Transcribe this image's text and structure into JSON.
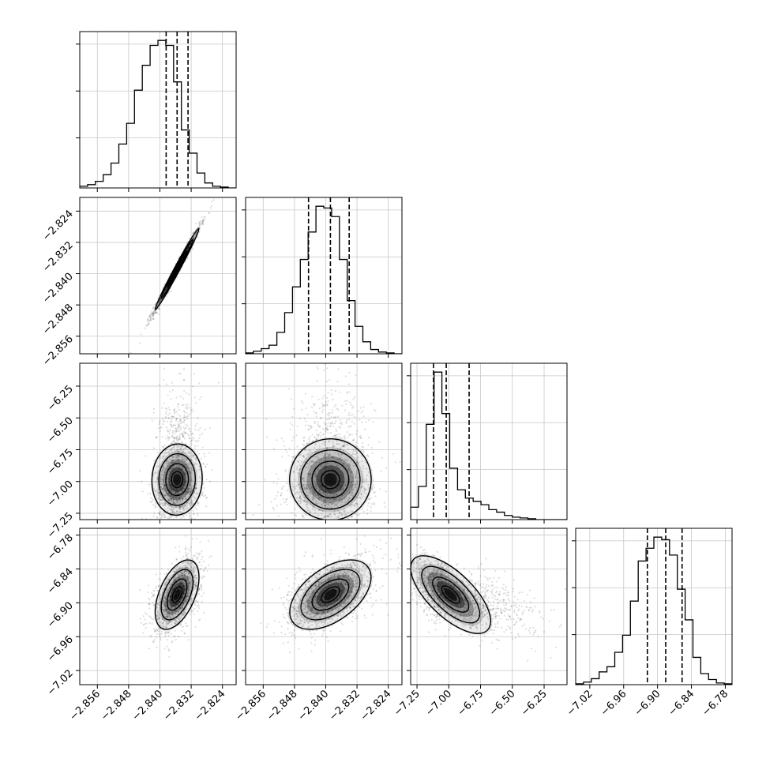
{
  "chart_data": {
    "type": "corner",
    "grid": true,
    "variables": [
      {
        "ticks": [
          "−2.856",
          "−2.848",
          "−2.840",
          "−2.832",
          "−2.824"
        ],
        "tick_values": [
          -2.856,
          -2.848,
          -2.84,
          -2.832,
          -2.824
        ],
        "range": [
          -2.8605,
          -2.8205
        ],
        "quantiles": [
          -2.8384,
          -2.8356,
          -2.8328
        ]
      },
      {
        "ticks": [
          "−2.856",
          "−2.848",
          "−2.840",
          "−2.832",
          "−2.824"
        ],
        "tick_values": [
          -2.856,
          -2.848,
          -2.84,
          -2.832,
          -2.824
        ],
        "range": [
          -2.8605,
          -2.8205
        ],
        "quantiles": [
          -2.8444,
          -2.8388,
          -2.834
        ]
      },
      {
        "ticks": [
          "−7.25",
          "−7.00",
          "−6.75",
          "−6.50",
          "−6.25"
        ],
        "tick_values": [
          -7.25,
          -7.0,
          -6.75,
          -6.5,
          -6.25
        ],
        "range": [
          -7.3,
          -6.07
        ],
        "quantiles": [
          -7.12,
          -7.02,
          -6.84
        ]
      },
      {
        "ticks": [
          "−7.02",
          "−6.96",
          "−6.90",
          "−6.84",
          "−6.78"
        ],
        "tick_values": [
          -7.02,
          -6.96,
          -6.9,
          -6.84,
          -6.78
        ],
        "range": [
          -7.045,
          -6.768
        ],
        "quantiles": [
          -6.918,
          -6.8855,
          -6.8565
        ]
      }
    ],
    "histograms": [
      {
        "variable": 0,
        "bin_edges": [
          -2.8605,
          -2.8585,
          -2.8565,
          -2.8545,
          -2.8525,
          -2.8505,
          -2.8485,
          -2.8465,
          -2.8445,
          -2.8425,
          -2.8405,
          -2.8385,
          -2.8365,
          -2.8345,
          -2.8325,
          -2.8305,
          -2.8285,
          -2.8265,
          -2.8245,
          -2.8225,
          -2.8205
        ],
        "counts": [
          2,
          4,
          8,
          16,
          30,
          53,
          78,
          118,
          148,
          172,
          178,
          172,
          128,
          70,
          42,
          18,
          6,
          2,
          1,
          0
        ]
      },
      {
        "variable": 1,
        "bin_edges": [
          -2.8605,
          -2.8585,
          -2.8565,
          -2.8545,
          -2.8525,
          -2.8505,
          -2.8485,
          -2.8465,
          -2.8445,
          -2.8425,
          -2.8405,
          -2.8385,
          -2.8365,
          -2.8345,
          -2.8325,
          -2.8305,
          -2.8285,
          -2.8265,
          -2.8245,
          -2.8225,
          -2.8205
        ],
        "counts": [
          1,
          3,
          6,
          10,
          25,
          48,
          78,
          110,
          142,
          172,
          170,
          160,
          110,
          62,
          32,
          14,
          5,
          2,
          1,
          0
        ]
      },
      {
        "variable": 2,
        "bin_edges": [
          -7.3,
          -7.2385,
          -7.177,
          -7.1155,
          -7.054,
          -6.9925,
          -6.931,
          -6.8695,
          -6.808,
          -6.7465,
          -6.685,
          -6.6235,
          -6.562,
          -6.5005,
          -6.439,
          -6.3775,
          -6.316,
          -6.2545,
          -6.193,
          -6.1315,
          -6.07
        ],
        "counts": [
          15,
          40,
          115,
          178,
          128,
          62,
          36,
          26,
          22,
          18,
          12,
          9,
          5,
          3,
          2,
          1,
          0,
          0,
          0,
          0
        ]
      },
      {
        "variable": 3,
        "bin_edges": [
          -7.045,
          -7.03115,
          -7.0173,
          -7.00345,
          -6.9896,
          -6.97575,
          -6.9619,
          -6.94805,
          -6.9342,
          -6.92035,
          -6.9065,
          -6.89265,
          -6.8788,
          -6.86495,
          -6.8511,
          -6.83725,
          -6.8234,
          -6.80955,
          -6.7957,
          -6.78185,
          -6.768
        ],
        "counts": [
          1,
          3,
          7,
          15,
          21,
          38,
          58,
          98,
          145,
          160,
          173,
          170,
          152,
          112,
          76,
          32,
          13,
          6,
          2,
          1
        ]
      }
    ],
    "panels_2d": [
      {
        "x": 0,
        "y": 1,
        "correlation": 0.99
      },
      {
        "x": 0,
        "y": 2,
        "correlation": 0.05
      },
      {
        "x": 1,
        "y": 2,
        "correlation": 0.05
      },
      {
        "x": 0,
        "y": 3,
        "correlation": 0.5
      },
      {
        "x": 1,
        "y": 3,
        "correlation": 0.5
      },
      {
        "x": 2,
        "y": 3,
        "correlation": -0.6
      }
    ]
  }
}
